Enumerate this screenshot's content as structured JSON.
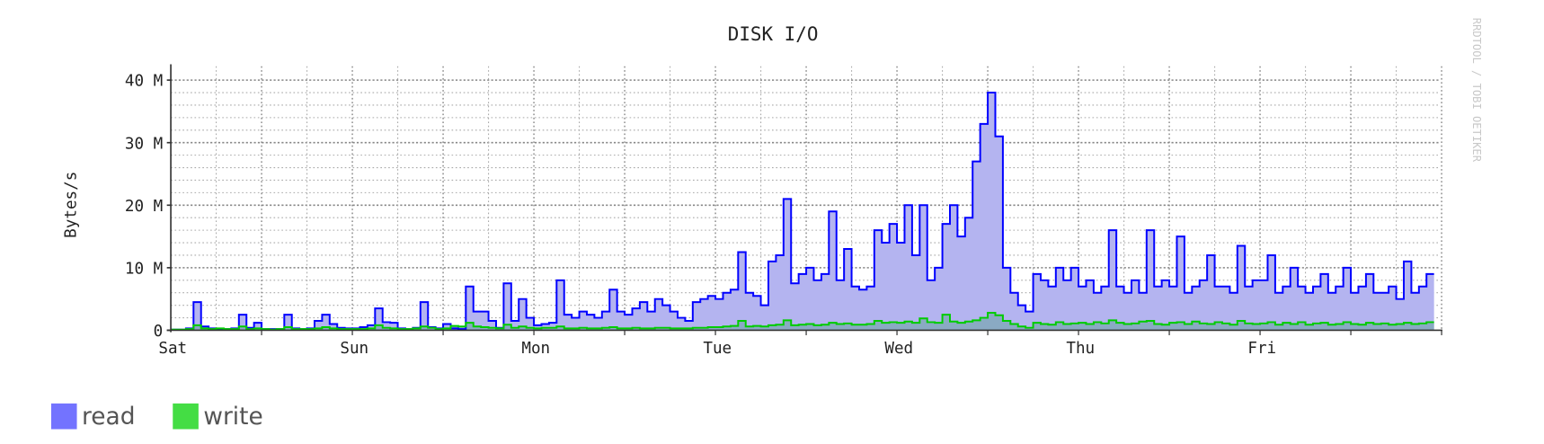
{
  "chart_data": {
    "type": "area",
    "title": "DISK I/O",
    "ylabel": "Bytes/s",
    "xlabel": "",
    "watermark": "RRDTOOL / TOBI OETIKER",
    "x_unit": "hours since Sat 00:00",
    "x_tick_labels": [
      "Sat",
      "Sun",
      "Mon",
      "Tue",
      "Wed",
      "Thu",
      "Fri"
    ],
    "y_tick_labels": [
      "0",
      "10 M",
      "20 M",
      "30 M",
      "40 M"
    ],
    "y_unit": "MB/s",
    "ylim": [
      0,
      40
    ],
    "grid": true,
    "legend_placement": "bottom-left",
    "series": [
      {
        "name": "read",
        "line_color": "#0000ff",
        "fill_color": "#b4b4f0",
        "legend_color": "#7373ff",
        "values": [
          0.1,
          0.1,
          0.3,
          4.5,
          0.6,
          0.3,
          0.2,
          0.2,
          0.3,
          2.5,
          0.4,
          1.2,
          0.2,
          0.2,
          0.2,
          2.5,
          0.3,
          0.2,
          0.3,
          1.5,
          2.5,
          1.0,
          0.4,
          0.3,
          0.3,
          0.5,
          0.8,
          3.5,
          1.3,
          1.2,
          0.3,
          0.2,
          0.4,
          4.5,
          0.5,
          0.3,
          1.0,
          0.3,
          0.2,
          7.0,
          3.0,
          3.0,
          1.5,
          0.4,
          7.5,
          1.5,
          5.0,
          2.0,
          0.8,
          1.0,
          1.2,
          8.0,
          2.5,
          2.0,
          3.0,
          2.5,
          2.0,
          3.0,
          6.5,
          3.0,
          2.5,
          3.5,
          4.5,
          3.0,
          5.0,
          4.0,
          3.0,
          2.0,
          1.5,
          4.5,
          5.0,
          5.5,
          5.0,
          6.0,
          6.5,
          12.5,
          6.0,
          5.5,
          4.0,
          11.0,
          12.0,
          21.0,
          7.5,
          9.0,
          10.0,
          8.0,
          9.0,
          19.0,
          8.0,
          13.0,
          7.0,
          6.5,
          7.0,
          16.0,
          14.0,
          17.0,
          14,
          20,
          12,
          20,
          8,
          10,
          17,
          20,
          15,
          18,
          27,
          33,
          38,
          31,
          10,
          6,
          4,
          3,
          9,
          8,
          7,
          10,
          8,
          10,
          7,
          8,
          6,
          7,
          16,
          7,
          6,
          8,
          6,
          16,
          7,
          8,
          7,
          15,
          6,
          7,
          8,
          12,
          7,
          7,
          6,
          13.5,
          7,
          8,
          8,
          12,
          6,
          7,
          10,
          7,
          6,
          7,
          9,
          6,
          7,
          10,
          6,
          7,
          9,
          6,
          6,
          7,
          5,
          11,
          6,
          7,
          9
        ]
      },
      {
        "name": "write",
        "line_color": "#00cc00",
        "fill_color": "#7fa8b8",
        "legend_color": "#44dd44",
        "values": [
          0.1,
          0.1,
          0.2,
          0.8,
          0.3,
          0.2,
          0.3,
          0.2,
          0.2,
          0.6,
          0.2,
          0.3,
          0.2,
          0.1,
          0.2,
          0.5,
          0.2,
          0.2,
          0.2,
          0.3,
          0.5,
          0.3,
          0.2,
          0.2,
          0.2,
          0.2,
          0.3,
          0.8,
          0.4,
          0.3,
          0.2,
          0.2,
          0.3,
          0.6,
          0.4,
          0.2,
          0.3,
          0.7,
          0.6,
          1.2,
          0.6,
          0.5,
          0.4,
          0.3,
          0.9,
          0.4,
          0.6,
          0.4,
          0.3,
          0.4,
          0.4,
          0.6,
          0.3,
          0.3,
          0.4,
          0.3,
          0.3,
          0.4,
          0.5,
          0.3,
          0.3,
          0.4,
          0.3,
          0.3,
          0.4,
          0.4,
          0.3,
          0.3,
          0.3,
          0.4,
          0.4,
          0.5,
          0.5,
          0.6,
          0.7,
          1.5,
          0.6,
          0.7,
          0.6,
          0.8,
          0.9,
          1.6,
          0.8,
          0.9,
          1.0,
          0.8,
          0.9,
          1.2,
          1.0,
          1.1,
          0.9,
          0.9,
          1.0,
          1.5,
          1.2,
          1.3,
          1.2,
          1.4,
          1.2,
          1.9,
          1.3,
          1.2,
          2.5,
          1.4,
          1.2,
          1.4,
          1.6,
          2.0,
          2.8,
          2.4,
          1.5,
          1.0,
          0.6,
          0.4,
          1.2,
          1.0,
          0.9,
          1.3,
          1.0,
          1.1,
          1.2,
          1.0,
          1.3,
          1.1,
          1.6,
          1.2,
          1.0,
          1.1,
          1.4,
          1.5,
          1.0,
          0.9,
          1.2,
          1.3,
          1.0,
          1.4,
          1.1,
          1.0,
          1.3,
          1.1,
          0.9,
          1.5,
          1.1,
          1.0,
          1.1,
          1.3,
          0.9,
          1.2,
          1.0,
          1.3,
          0.9,
          1.1,
          1.2,
          0.9,
          1.0,
          1.3,
          1.0,
          0.9,
          1.2,
          1.0,
          1.1,
          0.9,
          1.0,
          1.2,
          1.0,
          1.1,
          1.3
        ]
      }
    ]
  }
}
